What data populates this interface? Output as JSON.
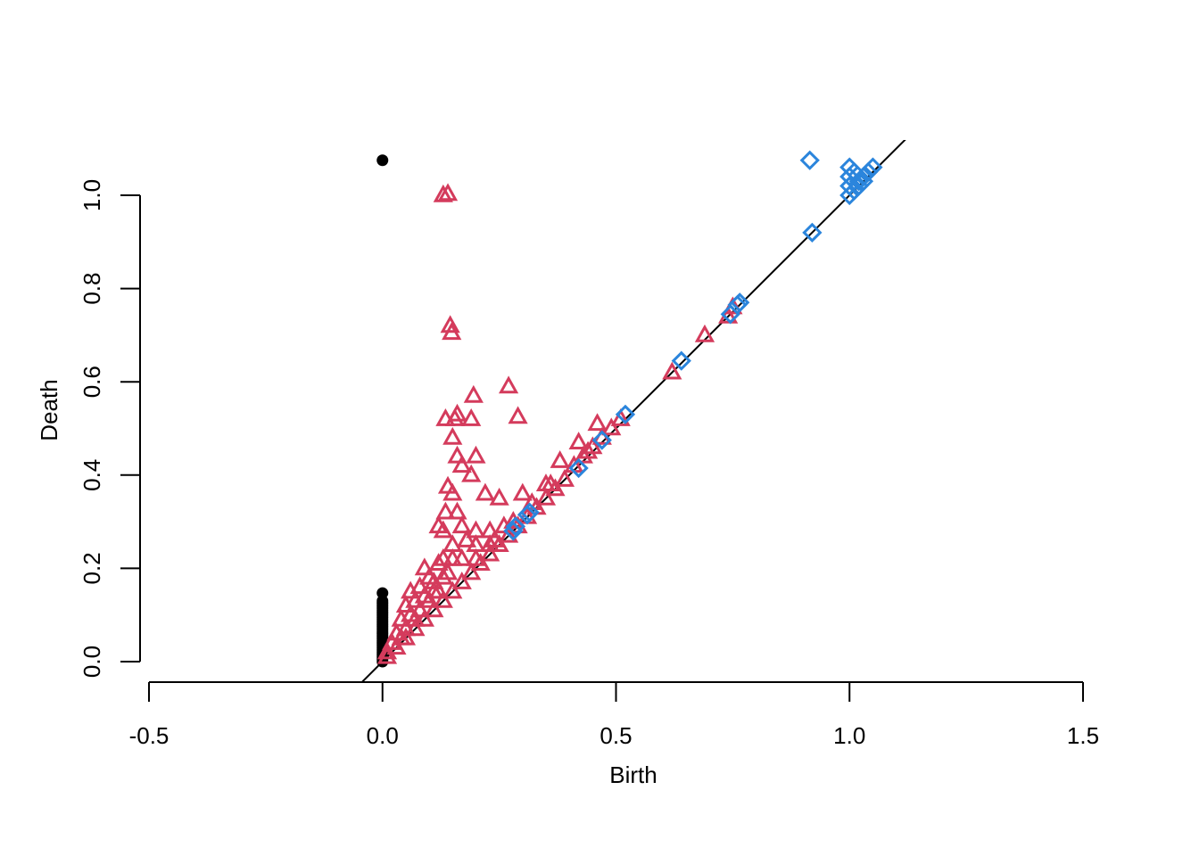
{
  "chart_data": {
    "type": "scatter",
    "title": "",
    "xlabel": "Birth",
    "ylabel": "Death",
    "xlim": [
      -0.5,
      1.5
    ],
    "ylim": [
      0.0,
      1.0
    ],
    "x_ticks": [
      "-0.5",
      "0.0",
      "0.5",
      "1.0",
      "1.5"
    ],
    "y_ticks": [
      "0.0",
      "0.2",
      "0.4",
      "0.6",
      "0.8",
      "1.0"
    ],
    "diagonal_line": true,
    "grid": false,
    "legend": "none",
    "series": [
      {
        "marker": "filled-circle",
        "color": "#000000",
        "points": [
          [
            0,
            1.075
          ],
          [
            0,
            0.147
          ],
          [
            0,
            0.13
          ],
          [
            0,
            0.125
          ],
          [
            0,
            0.12
          ],
          [
            0,
            0.115
          ],
          [
            0,
            0.11
          ],
          [
            0,
            0.105
          ],
          [
            0,
            0.1
          ],
          [
            0,
            0.095
          ],
          [
            0,
            0.09
          ],
          [
            0,
            0.085
          ],
          [
            0,
            0.08
          ],
          [
            0,
            0.075
          ],
          [
            0,
            0.07
          ],
          [
            0,
            0.065
          ],
          [
            0,
            0.06
          ],
          [
            0,
            0.055
          ],
          [
            0,
            0.05
          ],
          [
            0,
            0.045
          ],
          [
            0,
            0.04
          ],
          [
            0,
            0.035
          ],
          [
            0,
            0.03
          ],
          [
            0,
            0.025
          ],
          [
            0,
            0.02
          ],
          [
            0,
            0.015
          ],
          [
            0,
            0.01
          ],
          [
            0,
            0.005
          ],
          [
            0,
            0.0
          ]
        ]
      },
      {
        "marker": "triangle",
        "color": "#d43b5c",
        "points": [
          [
            0.13,
            1.0
          ],
          [
            0.14,
            1.003
          ],
          [
            0.145,
            0.72
          ],
          [
            0.148,
            0.705
          ],
          [
            0.195,
            0.57
          ],
          [
            0.27,
            0.59
          ],
          [
            0.29,
            0.525
          ],
          [
            0.135,
            0.52
          ],
          [
            0.16,
            0.53
          ],
          [
            0.155,
            0.52
          ],
          [
            0.19,
            0.52
          ],
          [
            0.15,
            0.48
          ],
          [
            0.2,
            0.44
          ],
          [
            0.16,
            0.44
          ],
          [
            0.17,
            0.42
          ],
          [
            0.19,
            0.4
          ],
          [
            0.14,
            0.375
          ],
          [
            0.15,
            0.36
          ],
          [
            0.22,
            0.36
          ],
          [
            0.135,
            0.32
          ],
          [
            0.16,
            0.32
          ],
          [
            0.25,
            0.35
          ],
          [
            0.3,
            0.36
          ],
          [
            0.35,
            0.38
          ],
          [
            0.12,
            0.29
          ],
          [
            0.13,
            0.28
          ],
          [
            0.17,
            0.29
          ],
          [
            0.2,
            0.28
          ],
          [
            0.23,
            0.28
          ],
          [
            0.26,
            0.29
          ],
          [
            0.15,
            0.25
          ],
          [
            0.18,
            0.26
          ],
          [
            0.2,
            0.25
          ],
          [
            0.23,
            0.25
          ],
          [
            0.09,
            0.2
          ],
          [
            0.12,
            0.21
          ],
          [
            0.13,
            0.22
          ],
          [
            0.15,
            0.22
          ],
          [
            0.17,
            0.22
          ],
          [
            0.06,
            0.15
          ],
          [
            0.08,
            0.16
          ],
          [
            0.1,
            0.18
          ],
          [
            0.11,
            0.17
          ],
          [
            0.13,
            0.18
          ],
          [
            0.05,
            0.12
          ],
          [
            0.07,
            0.13
          ],
          [
            0.09,
            0.14
          ],
          [
            0.11,
            0.15
          ],
          [
            0.14,
            0.19
          ],
          [
            0.04,
            0.09
          ],
          [
            0.06,
            0.1
          ],
          [
            0.08,
            0.11
          ],
          [
            0.1,
            0.13
          ],
          [
            0.12,
            0.15
          ],
          [
            0.03,
            0.06
          ],
          [
            0.05,
            0.07
          ],
          [
            0.07,
            0.09
          ],
          [
            0.02,
            0.04
          ],
          [
            0.04,
            0.05
          ],
          [
            0.01,
            0.02
          ],
          [
            0.01,
            0.01
          ],
          [
            0.03,
            0.03
          ],
          [
            0.05,
            0.05
          ],
          [
            0.07,
            0.07
          ],
          [
            0.09,
            0.09
          ],
          [
            0.11,
            0.11
          ],
          [
            0.13,
            0.13
          ],
          [
            0.15,
            0.15
          ],
          [
            0.17,
            0.17
          ],
          [
            0.19,
            0.19
          ],
          [
            0.21,
            0.21
          ],
          [
            0.23,
            0.23
          ],
          [
            0.25,
            0.25
          ],
          [
            0.27,
            0.27
          ],
          [
            0.29,
            0.29
          ],
          [
            0.31,
            0.31
          ],
          [
            0.33,
            0.33
          ],
          [
            0.35,
            0.35
          ],
          [
            0.37,
            0.37
          ],
          [
            0.39,
            0.39
          ],
          [
            0.41,
            0.42
          ],
          [
            0.43,
            0.44
          ],
          [
            0.45,
            0.46
          ],
          [
            0.47,
            0.48
          ],
          [
            0.49,
            0.5
          ],
          [
            0.51,
            0.52
          ],
          [
            0.2,
            0.22
          ],
          [
            0.24,
            0.26
          ],
          [
            0.28,
            0.3
          ],
          [
            0.32,
            0.34
          ],
          [
            0.36,
            0.38
          ],
          [
            0.42,
            0.47
          ],
          [
            0.44,
            0.45
          ],
          [
            0.46,
            0.51
          ],
          [
            0.38,
            0.43
          ],
          [
            0.62,
            0.62
          ],
          [
            0.69,
            0.7
          ],
          [
            0.74,
            0.74
          ],
          [
            0.75,
            0.76
          ]
        ]
      },
      {
        "marker": "diamond",
        "color": "#2b85dc",
        "points": [
          [
            0.915,
            1.075
          ],
          [
            0.92,
            0.92
          ],
          [
            1.0,
            1.06
          ],
          [
            1.0,
            1.04
          ],
          [
            1.0,
            1.02
          ],
          [
            1.0,
            1.0
          ],
          [
            1.01,
            1.05
          ],
          [
            1.02,
            1.03
          ],
          [
            1.03,
            1.04
          ],
          [
            1.04,
            1.05
          ],
          [
            1.05,
            1.06
          ],
          [
            1.01,
            1.01
          ],
          [
            1.02,
            1.02
          ],
          [
            1.03,
            1.03
          ],
          [
            0.64,
            0.645
          ],
          [
            0.745,
            0.745
          ],
          [
            0.76,
            0.765
          ],
          [
            0.765,
            0.77
          ],
          [
            0.52,
            0.53
          ],
          [
            0.47,
            0.475
          ],
          [
            0.42,
            0.415
          ],
          [
            0.31,
            0.315
          ],
          [
            0.315,
            0.32
          ],
          [
            0.28,
            0.28
          ],
          [
            0.285,
            0.29
          ]
        ]
      }
    ]
  }
}
